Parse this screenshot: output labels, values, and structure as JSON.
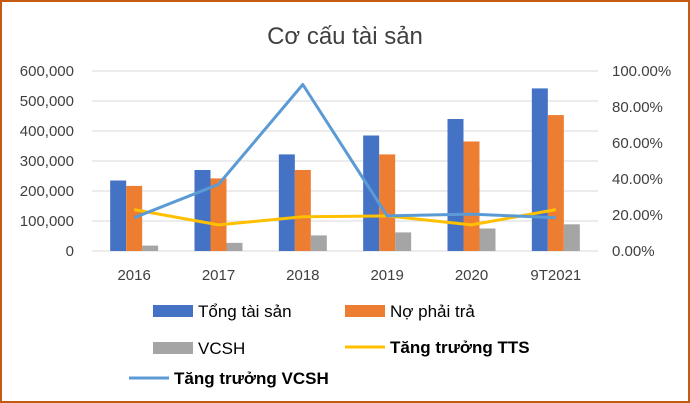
{
  "chart_data": {
    "type": "bar",
    "title": "Cơ cấu tài sản",
    "categories": [
      "2016",
      "2017",
      "2018",
      "2019",
      "2020",
      "9T2021"
    ],
    "series": [
      {
        "name": "Tổng tài sản",
        "kind": "bar",
        "axis": "left",
        "color": "#4472c4",
        "values": [
          235000,
          270000,
          322000,
          385000,
          440000,
          542000
        ]
      },
      {
        "name": "Nợ phải trả",
        "kind": "bar",
        "axis": "left",
        "color": "#ed7d31",
        "values": [
          217000,
          242000,
          270000,
          322000,
          365000,
          453000
        ]
      },
      {
        "name": "VCSH",
        "kind": "bar",
        "axis": "left",
        "color": "#a5a5a5",
        "values": [
          18000,
          27000,
          52000,
          62000,
          75000,
          89000
        ]
      },
      {
        "name": "Tăng trưởng TTS",
        "kind": "line",
        "axis": "right",
        "color": "#ffc000",
        "values": [
          0.23,
          0.145,
          0.19,
          0.195,
          0.145,
          0.23
        ]
      },
      {
        "name": "Tăng trưởng VCSH",
        "kind": "line",
        "axis": "right",
        "color": "#5b9bd5",
        "values": [
          0.185,
          0.37,
          0.925,
          0.195,
          0.205,
          0.185
        ]
      }
    ],
    "y_left": {
      "min": 0,
      "max": 600000,
      "ticks": [
        "0",
        "100,000",
        "200,000",
        "300,000",
        "400,000",
        "500,000",
        "600,000"
      ]
    },
    "y_right": {
      "min": 0,
      "max": 1.0,
      "ticks": [
        "0.00%",
        "20.00%",
        "40.00%",
        "60.00%",
        "80.00%",
        "100.00%"
      ]
    },
    "grid": true,
    "legend": "bottom"
  }
}
